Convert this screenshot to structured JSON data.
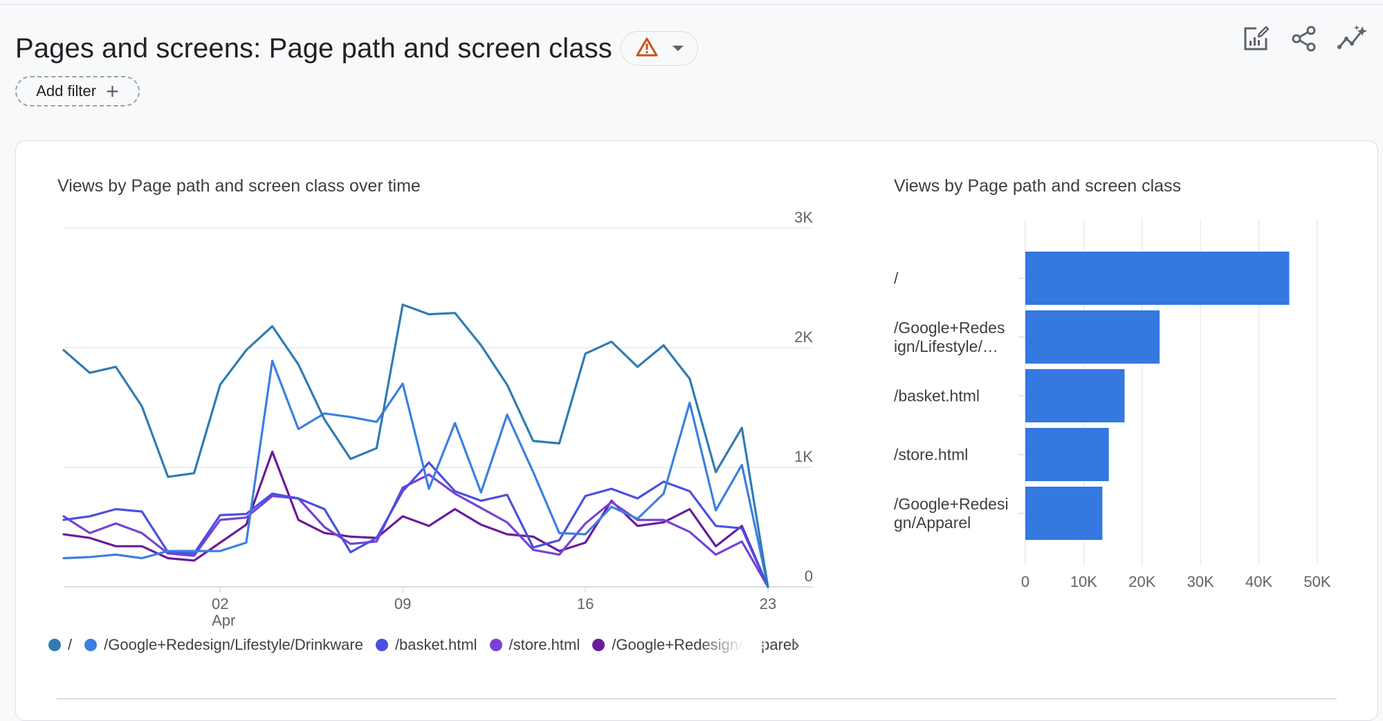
{
  "header": {
    "title": "Pages and screens: Page path and screen class",
    "warning_icon": "warning-triangle-icon",
    "dropdown_icon": "caret-down-icon",
    "actions": [
      {
        "name": "customize-report-button",
        "icon": "edit-chart-icon"
      },
      {
        "name": "share-button",
        "icon": "share-icon"
      },
      {
        "name": "insights-button",
        "icon": "insights-sparkle-icon"
      }
    ]
  },
  "filter": {
    "label": "Add filter",
    "icon": "plus-icon"
  },
  "colors": {
    "s1": "#2f7bb3",
    "s2": "#3b7fe0",
    "s3": "#4a4fe0",
    "s4": "#7642d6",
    "s5": "#6a1b9a",
    "bar": "#3478e0",
    "warning": "#c5541a",
    "icon": "#5f6368"
  },
  "line_chart_title": "Views by Page path and screen class over time",
  "bar_chart_title": "Views by Page path and screen class",
  "legend": [
    {
      "label": "/",
      "color": "#2f7bb3"
    },
    {
      "label": "/Google+Redesign/Lifestyle/Drinkware",
      "color": "#3b7fe0"
    },
    {
      "label": "/basket.html",
      "color": "#4a4fe0"
    },
    {
      "label": "/store.html",
      "color": "#7642d6"
    },
    {
      "label": "/Google+Redesign/Apparel",
      "color": "#6a1b9a"
    }
  ],
  "legend_nav": {
    "prev_icon": "chevron-left-icon",
    "next_icon": "chevron-right-icon",
    "prev": "‹",
    "next": "›"
  },
  "chart_data": [
    {
      "type": "line",
      "title": "Views by Page path and screen class over time",
      "x_tick_labels": [
        "02",
        "Apr",
        "09",
        "16",
        "23"
      ],
      "x_ticks": [
        {
          "index": 7,
          "label": "02",
          "sub": "Apr"
        },
        {
          "index": 14,
          "label": "09"
        },
        {
          "index": 21,
          "label": "16"
        },
        {
          "index": 28,
          "label": "23"
        }
      ],
      "y_ticks": [
        0,
        1000,
        2000,
        3000
      ],
      "y_tick_labels": [
        "0",
        "1K",
        "2K",
        "3K"
      ],
      "ylim": [
        0,
        3000
      ],
      "grid": true,
      "series": [
        {
          "name": "/",
          "color": "#2f7bb3",
          "values": [
            1980,
            1790,
            1840,
            1510,
            920,
            950,
            1690,
            1980,
            2180,
            1860,
            1400,
            1070,
            1160,
            2360,
            2280,
            2290,
            2020,
            1690,
            1220,
            1200,
            1950,
            2050,
            1840,
            2020,
            1740,
            960,
            1330,
            0
          ]
        },
        {
          "name": "/Google+Redesign/Lifestyle/Drinkware",
          "color": "#3b7fe0",
          "values": [
            240,
            250,
            270,
            240,
            300,
            300,
            300,
            370,
            1890,
            1320,
            1450,
            1420,
            1380,
            1700,
            820,
            1370,
            790,
            1440,
            960,
            450,
            440,
            670,
            570,
            780,
            1540,
            640,
            1020,
            0
          ]
        },
        {
          "name": "/basket.html",
          "color": "#4a4fe0",
          "values": [
            560,
            590,
            650,
            630,
            290,
            280,
            600,
            610,
            780,
            740,
            650,
            290,
            410,
            800,
            1040,
            800,
            720,
            770,
            330,
            390,
            760,
            820,
            740,
            880,
            800,
            510,
            490,
            0
          ]
        },
        {
          "name": "/store.html",
          "color": "#7642d6",
          "values": [
            590,
            450,
            530,
            450,
            280,
            260,
            560,
            580,
            760,
            740,
            500,
            360,
            380,
            830,
            940,
            780,
            660,
            540,
            310,
            270,
            530,
            710,
            560,
            560,
            460,
            270,
            380,
            0
          ]
        },
        {
          "name": "/Google+Redesign/Apparel",
          "color": "#6a1b9a",
          "values": [
            440,
            410,
            340,
            340,
            240,
            220,
            370,
            520,
            1130,
            560,
            450,
            420,
            410,
            590,
            510,
            650,
            520,
            440,
            420,
            300,
            370,
            720,
            510,
            540,
            650,
            340,
            510,
            0
          ]
        }
      ]
    },
    {
      "type": "bar",
      "orientation": "horizontal",
      "title": "Views by Page path and screen class",
      "categories": [
        "/",
        "/Google+Redesign/Lifestyle/Drinkware",
        "/basket.html",
        "/store.html",
        "/Google+Redesign/Apparel"
      ],
      "category_labels": [
        [
          "/"
        ],
        [
          "/Google+Redes",
          "ign/Lifestyle/…"
        ],
        [
          "/basket.html"
        ],
        [
          "/store.html"
        ],
        [
          "/Google+Redesi",
          "gn/Apparel"
        ]
      ],
      "values": [
        45200,
        23000,
        17000,
        14300,
        13200
      ],
      "x_ticks": [
        0,
        10000,
        20000,
        30000,
        40000,
        50000
      ],
      "x_tick_labels": [
        "0",
        "10K",
        "20K",
        "30K",
        "40K",
        "50K"
      ],
      "xlim": [
        0,
        50000
      ],
      "grid": true
    }
  ]
}
